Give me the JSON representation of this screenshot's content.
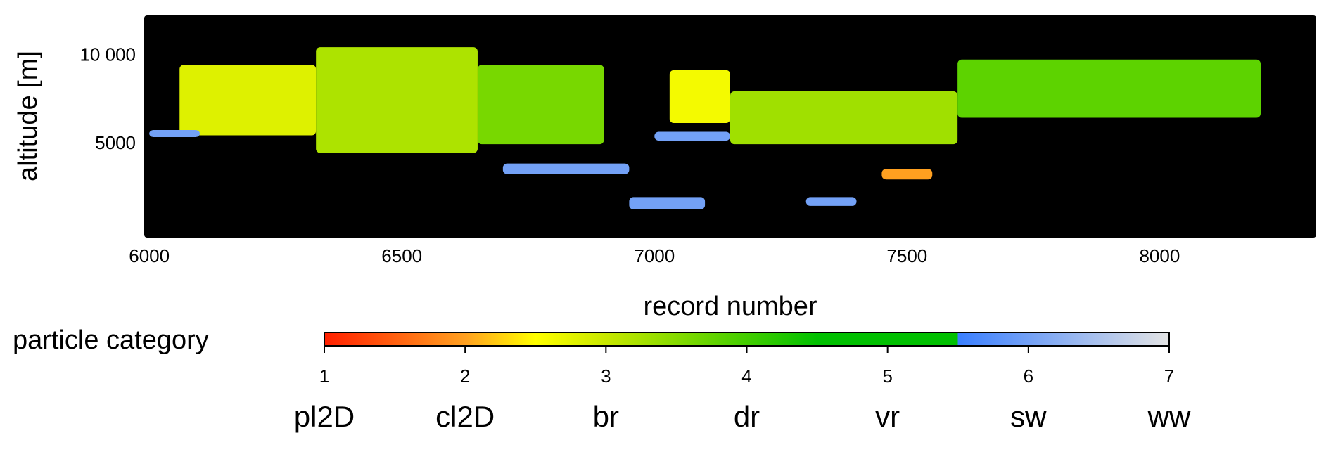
{
  "chart_data": {
    "type": "heatmap",
    "xlabel": "record number",
    "ylabel": "altitude [m]",
    "xlim": [
      5990,
      8310
    ],
    "xticks": [
      6000,
      6500,
      7000,
      7500,
      8000
    ],
    "ylim": [
      -300,
      12300
    ],
    "yticks": [
      5000,
      {
        "value": 10000,
        "label": "10 000"
      }
    ],
    "background": "#000000",
    "colorbar": {
      "label": "particle category",
      "lim": [
        1,
        7
      ],
      "ticks": [
        1,
        2,
        3,
        4,
        5,
        6,
        7
      ],
      "categories": [
        "pl2D",
        "cl2D",
        "br",
        "dr",
        "vr",
        "sw",
        "ww"
      ],
      "colorscale": [
        {
          "value": 1,
          "color": "#ff2000"
        },
        {
          "value": 2,
          "color": "#ffa020"
        },
        {
          "value": 2.5,
          "color": "#ffff00"
        },
        {
          "value": 3,
          "color": "#c8e800"
        },
        {
          "value": 4.5,
          "color": "#00c000"
        },
        {
          "value": 5.5,
          "color": "#00c000"
        },
        {
          "value": 5.5,
          "color": "#3a7fff"
        },
        {
          "value": 7,
          "color": "#e4e4e4"
        }
      ]
    },
    "regions": [
      {
        "x0": 6060,
        "x1": 6330,
        "y0": 5500,
        "y1": 9500,
        "category": 2.8
      },
      {
        "x0": 6330,
        "x1": 6650,
        "y0": 4500,
        "y1": 10500,
        "category": 3.2
      },
      {
        "x0": 6650,
        "x1": 6900,
        "y0": 5000,
        "y1": 9500,
        "category": 3.6
      },
      {
        "x0": 6000,
        "x1": 6100,
        "y0": 5400,
        "y1": 5800,
        "category": 6
      },
      {
        "x0": 7030,
        "x1": 7150,
        "y0": 6200,
        "y1": 9200,
        "category": 2.6
      },
      {
        "x0": 7000,
        "x1": 7150,
        "y0": 5200,
        "y1": 5700,
        "category": 6
      },
      {
        "x0": 7150,
        "x1": 7600,
        "y0": 5000,
        "y1": 8000,
        "category": 3.3
      },
      {
        "x0": 7600,
        "x1": 8200,
        "y0": 6500,
        "y1": 9800,
        "category": 3.8
      },
      {
        "x0": 6700,
        "x1": 6950,
        "y0": 3300,
        "y1": 3900,
        "category": 6
      },
      {
        "x0": 6950,
        "x1": 7100,
        "y0": 1300,
        "y1": 2000,
        "category": 6
      },
      {
        "x0": 7450,
        "x1": 7550,
        "y0": 3000,
        "y1": 3600,
        "category": 2
      },
      {
        "x0": 7300,
        "x1": 7400,
        "y0": 1500,
        "y1": 2000,
        "category": 6
      }
    ]
  }
}
